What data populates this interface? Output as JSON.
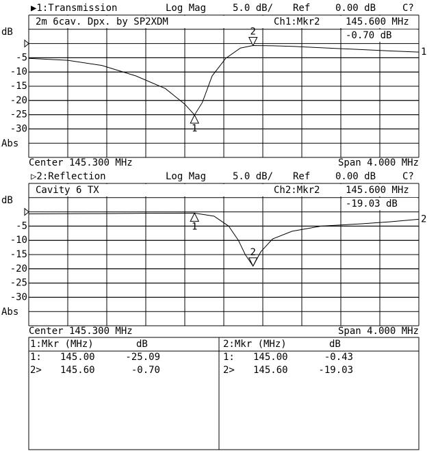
{
  "chart_data": [
    {
      "type": "line",
      "channel_label": "▶1:Transmission",
      "format": "Log Mag",
      "scale": "5.0 dB/",
      "ref_label": "Ref",
      "ref_value_label": "0.00 dB",
      "cal": "C?",
      "title": "2m 6cav. Dpx. by SP2XDM",
      "marker_channel": "Ch1:Mkr2",
      "marker_freq": "145.600 MHz",
      "marker_value": "-0.70 dB",
      "y_unit": "dB",
      "y_mode": "Abs",
      "center_label": "Center 145.300 MHz",
      "span_label": "Span 4.000 MHz",
      "trace_label": "1",
      "ref_level": 0,
      "xlim": [
        143.3,
        147.3
      ],
      "ylim": [
        -40,
        10
      ],
      "yticks": [
        -5,
        -10,
        -15,
        -20,
        -25,
        -30
      ],
      "x": [
        143.3,
        143.7,
        144.05,
        144.4,
        144.7,
        144.9,
        145.0,
        145.08,
        145.18,
        145.32,
        145.47,
        145.6,
        145.8,
        146.0,
        146.5,
        147.0,
        147.3
      ],
      "values": [
        -5.2,
        -5.9,
        -7.7,
        -11.4,
        -15.8,
        -21.3,
        -25.09,
        -20.7,
        -11.4,
        -5.2,
        -1.6,
        -0.7,
        -0.8,
        -1.0,
        -1.8,
        -2.6,
        -3.0
      ],
      "markers": [
        {
          "label": "1",
          "x": 145.0,
          "y": -25.09
        },
        {
          "label": "2",
          "x": 145.6,
          "y": -0.7
        }
      ]
    },
    {
      "type": "line",
      "channel_label": "▷2:Reflection",
      "format": "Log Mag",
      "scale": "5.0 dB/",
      "ref_label": "Ref",
      "ref_value_label": "0.00 dB",
      "cal": "C?",
      "title": "Cavity 6 TX",
      "marker_channel": "Ch2:Mkr2",
      "marker_freq": "145.600 MHz",
      "marker_value": "-19.03 dB",
      "y_unit": "dB",
      "y_mode": "Abs",
      "center_label": "Center 145.300 MHz",
      "span_label": "Span 4.000 MHz",
      "trace_label": "2",
      "ref_level": 0,
      "xlim": [
        143.3,
        147.3
      ],
      "ylim": [
        -40,
        10
      ],
      "yticks": [
        -5,
        -10,
        -15,
        -20,
        -25,
        -30
      ],
      "x": [
        143.3,
        144.0,
        144.5,
        145.0,
        145.2,
        145.35,
        145.45,
        145.52,
        145.6,
        145.68,
        145.8,
        146.0,
        146.3,
        146.7,
        147.0,
        147.3
      ],
      "values": [
        -0.7,
        -0.6,
        -0.5,
        -0.43,
        -1.5,
        -5.0,
        -10.0,
        -15.0,
        -19.03,
        -14.0,
        -9.5,
        -6.8,
        -5.0,
        -4.2,
        -3.5,
        -2.6
      ],
      "markers": [
        {
          "label": "1",
          "x": 145.0,
          "y": -0.43
        },
        {
          "label": "2",
          "x": 145.6,
          "y": -19.03
        }
      ]
    }
  ],
  "table": {
    "panels": [
      {
        "header": [
          "1:Mkr (MHz)",
          "dB"
        ],
        "rows": [
          [
            "1:",
            "145.00",
            "-25.09"
          ],
          [
            "2>",
            "145.60",
            "-0.70"
          ]
        ]
      },
      {
        "header": [
          "2:Mkr (MHz)",
          "dB"
        ],
        "rows": [
          [
            "1:",
            "145.00",
            "-0.43"
          ],
          [
            "2>",
            "145.60",
            "-19.03"
          ]
        ]
      }
    ]
  }
}
